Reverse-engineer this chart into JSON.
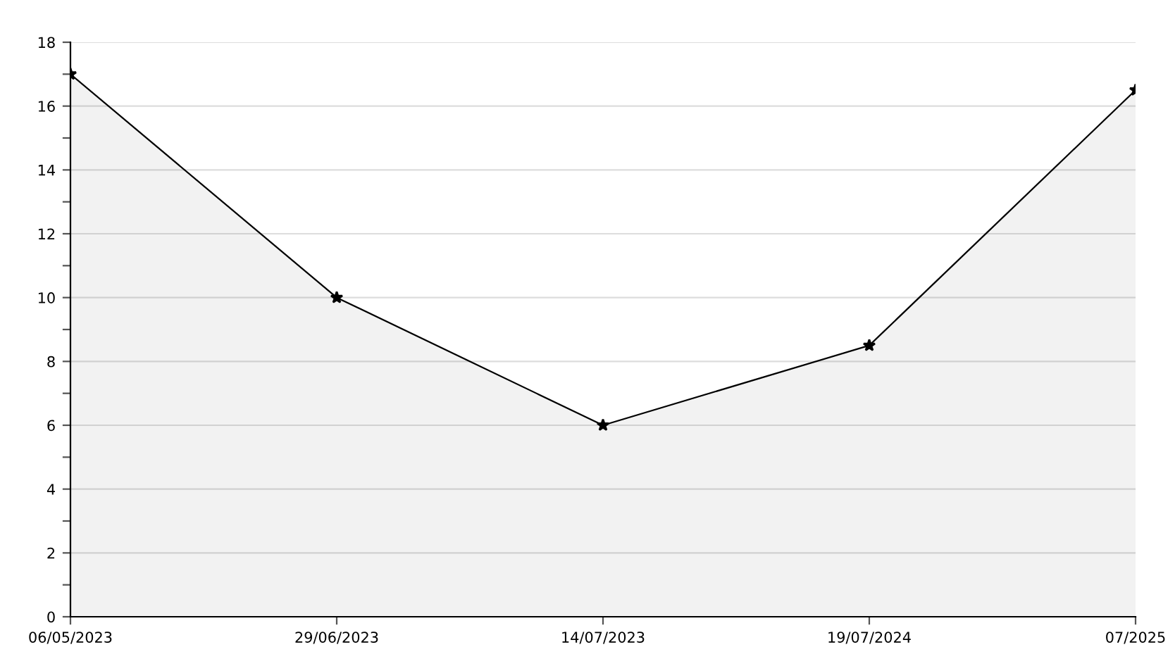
{
  "chart_data": {
    "type": "area",
    "categories": [
      "06/05/2023",
      "29/06/2023",
      "14/07/2023",
      "19/07/2024",
      "07/2025"
    ],
    "series": [
      {
        "color": "#000000",
        "values": [
          17,
          10,
          6,
          8.5,
          16.5
        ]
      }
    ],
    "ylim": [
      0,
      18
    ],
    "yticks": [
      0,
      {
        "value": 1,
        "label": null
      },
      2,
      {
        "value": 3,
        "label": null
      },
      4,
      {
        "value": 5,
        "label": null
      },
      6,
      {
        "value": 7,
        "label": null
      },
      8,
      {
        "value": 9,
        "label": null
      },
      10,
      {
        "value": 11,
        "label": null
      },
      12,
      {
        "value": 13,
        "label": null
      },
      14,
      {
        "value": 15,
        "label": null
      },
      16,
      {
        "value": 17,
        "label": null
      },
      18
    ],
    "grid": "y",
    "marker": "star",
    "line_style": "solid",
    "legend": false
  }
}
